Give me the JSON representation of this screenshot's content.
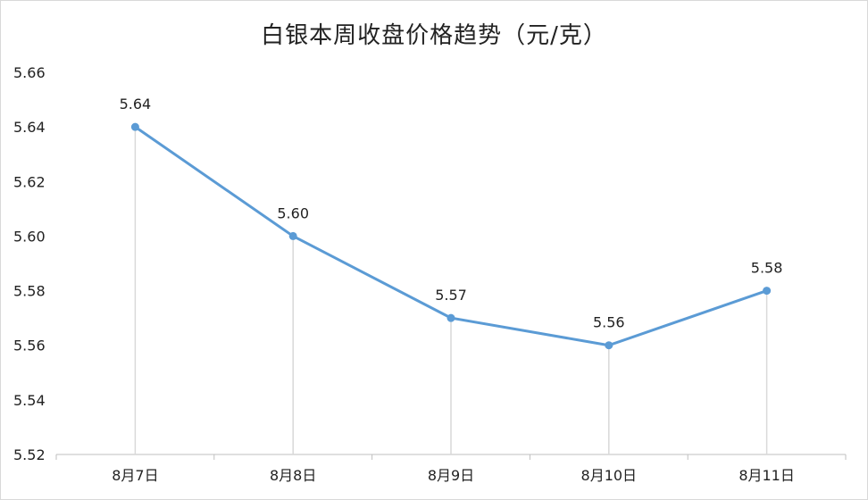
{
  "chart_data": {
    "type": "line",
    "title": "白银本周收盘价格趋势（元/克）",
    "categories": [
      "8月7日",
      "8月8日",
      "8月9日",
      "8月10日",
      "8月11日"
    ],
    "values": [
      5.64,
      5.6,
      5.57,
      5.56,
      5.58
    ],
    "data_labels": [
      "5.64",
      "5.60",
      "5.57",
      "5.56",
      "5.58"
    ],
    "ylim": [
      5.52,
      5.66
    ],
    "yticks": [
      5.52,
      5.54,
      5.56,
      5.58,
      5.6,
      5.62,
      5.64,
      5.66
    ],
    "ytick_labels": [
      "5.52",
      "5.54",
      "5.56",
      "5.58",
      "5.60",
      "5.62",
      "5.64",
      "5.66"
    ],
    "xlabel": "",
    "ylabel": "",
    "grid": false,
    "drop_lines": true,
    "legend": "none",
    "colors": {
      "line": "#5b9bd5",
      "drop_line": "#d9d9d9",
      "axis": "#bfbfbf",
      "text": "#222222"
    }
  }
}
